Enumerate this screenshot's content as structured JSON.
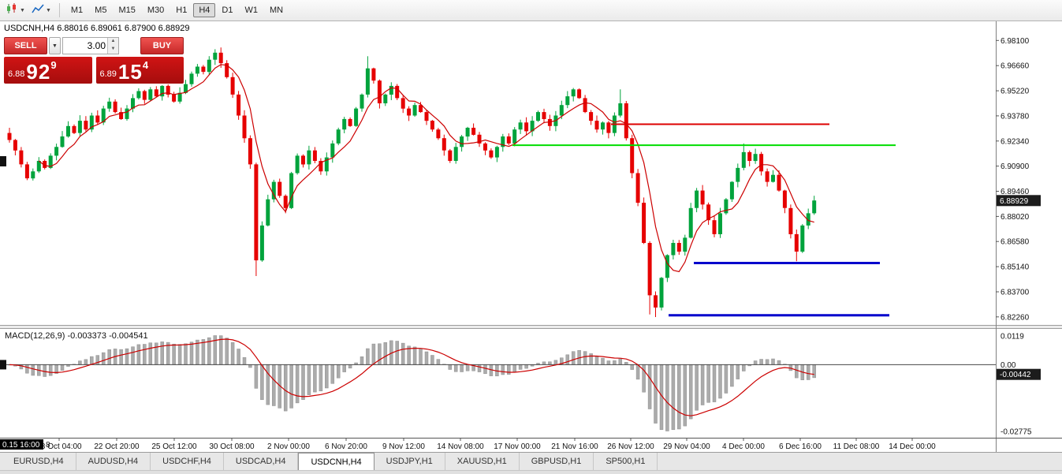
{
  "toolbar": {
    "timeframes": [
      "M1",
      "M5",
      "M15",
      "M30",
      "H1",
      "H4",
      "D1",
      "W1",
      "MN"
    ],
    "active_timeframe": "H4"
  },
  "one_click": {
    "sell_label": "SELL",
    "buy_label": "BUY",
    "volume": "3.00",
    "sell_price": {
      "prefix": "6.88",
      "big": "92",
      "sup": "9"
    },
    "buy_price": {
      "prefix": "6.89",
      "big": "15",
      "sup": "4"
    }
  },
  "chart": {
    "header": "USDCNH,H4 6.88016 6.89061 6.87900 6.88929",
    "symbol": "USDCNH,H4",
    "open": "6.88016",
    "high": "6.89061",
    "low": "6.87900",
    "close": "6.88929",
    "current_price": "6.88929"
  },
  "chart_data": {
    "type": "candlestick",
    "symbol": "USDCNH",
    "timeframe": "H4",
    "y_range": [
      6.818,
      6.992
    ],
    "y_axis_labels": [
      "6.98100",
      "6.96660",
      "6.95220",
      "6.93780",
      "6.92340",
      "6.90900",
      "6.89460",
      "6.88020",
      "6.86580",
      "6.85140",
      "6.83700",
      "6.82260"
    ],
    "x_axis_labels": [
      {
        "text": "18 Oct 04:00",
        "x": 75
      },
      {
        "text": "22 Oct 20:00",
        "x": 148
      },
      {
        "text": "25 Oct 12:00",
        "x": 221
      },
      {
        "text": "30 Oct 08:00",
        "x": 294
      },
      {
        "text": "2 Nov 00:00",
        "x": 366
      },
      {
        "text": "6 Nov 20:00",
        "x": 439
      },
      {
        "text": "9 Nov 12:00",
        "x": 512
      },
      {
        "text": "14 Nov 08:00",
        "x": 584
      },
      {
        "text": "17 Nov 00:00",
        "x": 656
      },
      {
        "text": "21 Nov 16:00",
        "x": 729
      },
      {
        "text": "26 Nov 12:00",
        "x": 800
      },
      {
        "text": "29 Nov 04:00",
        "x": 871
      },
      {
        "text": "4 Dec 00:00",
        "x": 943
      },
      {
        "text": "6 Dec 16:00",
        "x": 1015
      },
      {
        "text": "11 Dec 08:00",
        "x": 1086
      },
      {
        "text": "14 Dec 00:00",
        "x": 1157
      }
    ],
    "x_axis_selected": {
      "text": "0.15 16:00",
      "x": 0
    },
    "x_axis_stray": "8",
    "closes": [
      6.924,
      6.918,
      6.91,
      6.902,
      6.906,
      6.912,
      6.908,
      6.915,
      6.92,
      6.926,
      6.932,
      6.928,
      6.935,
      6.93,
      6.938,
      6.934,
      6.942,
      6.946,
      6.94,
      6.936,
      6.942,
      6.948,
      6.952,
      6.947,
      6.953,
      6.949,
      6.955,
      6.95,
      6.946,
      6.951,
      6.956,
      6.962,
      6.966,
      6.963,
      6.97,
      6.974,
      6.968,
      6.96,
      6.95,
      6.938,
      6.925,
      6.91,
      6.855,
      6.875,
      6.89,
      6.9,
      6.892,
      6.885,
      6.905,
      6.915,
      6.91,
      6.918,
      6.912,
      6.906,
      6.914,
      6.922,
      6.93,
      6.936,
      6.932,
      6.942,
      6.95,
      6.965,
      6.958,
      6.945,
      6.95,
      6.955,
      6.948,
      6.942,
      6.938,
      6.944,
      6.94,
      6.935,
      6.93,
      6.925,
      6.918,
      6.912,
      6.92,
      6.926,
      6.931,
      6.927,
      6.922,
      6.918,
      6.914,
      6.92,
      6.926,
      6.922,
      6.93,
      6.934,
      6.929,
      6.935,
      6.94,
      6.936,
      6.932,
      6.938,
      6.944,
      6.949,
      6.953,
      6.948,
      6.94,
      6.935,
      6.93,
      6.934,
      6.928,
      6.938,
      6.945,
      6.925,
      6.905,
      6.888,
      6.865,
      6.835,
      6.828,
      6.845,
      6.858,
      6.865,
      6.86,
      6.868,
      6.885,
      6.895,
      6.887,
      6.878,
      6.87,
      6.882,
      6.89,
      6.9,
      6.908,
      6.917,
      6.912,
      6.916,
      6.906,
      6.9,
      6.904,
      6.895,
      6.885,
      6.87,
      6.86,
      6.875,
      6.882,
      6.8893
    ],
    "wick_overrides": {
      "35": {
        "h": 6.976
      },
      "42": {
        "l": 6.846
      },
      "61": {
        "h": 6.972
      },
      "104": {
        "h": 6.953
      },
      "109": {
        "l": 6.824
      },
      "110": {
        "l": 6.8225
      },
      "125": {
        "h": 6.922
      },
      "134": {
        "l": 6.8545
      }
    },
    "ma_period": 6,
    "h_lines": [
      {
        "name": "red-resistance-line",
        "color": "#dd0000",
        "price": 6.933,
        "x1": 775,
        "x2": 1052,
        "w": 2
      },
      {
        "name": "green-resistance-line",
        "color": "#00dd00",
        "price": 6.921,
        "x1": 650,
        "x2": 1136,
        "w": 2
      },
      {
        "name": "blue-support-line-upper",
        "color": "#0000cc",
        "price": 6.8535,
        "x1": 880,
        "x2": 1116,
        "w": 3
      },
      {
        "name": "blue-support-line-lower",
        "color": "#0000cc",
        "price": 6.8235,
        "x1": 848,
        "x2": 1128,
        "w": 3
      }
    ],
    "colors": {
      "up": "#00a33c",
      "down": "#e60000",
      "ma": "#cc0000",
      "histogram": "#ababab",
      "signal": "#cc0000",
      "badge_bg": "#1c1c1c"
    },
    "macd": {
      "header": "MACD(12,26,9)",
      "values": "-0.003373 -0.004541",
      "fast": 12,
      "slow": 26,
      "signal": 9,
      "axis_max": "0.0119",
      "axis_zero": "0.00",
      "axis_min": "-0.02775",
      "badge": "-0.00442"
    }
  },
  "tabs": {
    "items": [
      {
        "label": "EURUSD,H4",
        "active": false
      },
      {
        "label": "AUDUSD,H4",
        "active": false
      },
      {
        "label": "USDCHF,H4",
        "active": false
      },
      {
        "label": "USDCAD,H4",
        "active": false
      },
      {
        "label": "USDCNH,H4",
        "active": true
      },
      {
        "label": "USDJPY,H1",
        "active": false
      },
      {
        "label": "XAUUSD,H1",
        "active": false
      },
      {
        "label": "GBPUSD,H1",
        "active": false
      },
      {
        "label": "SP500,H1",
        "active": false
      }
    ]
  }
}
